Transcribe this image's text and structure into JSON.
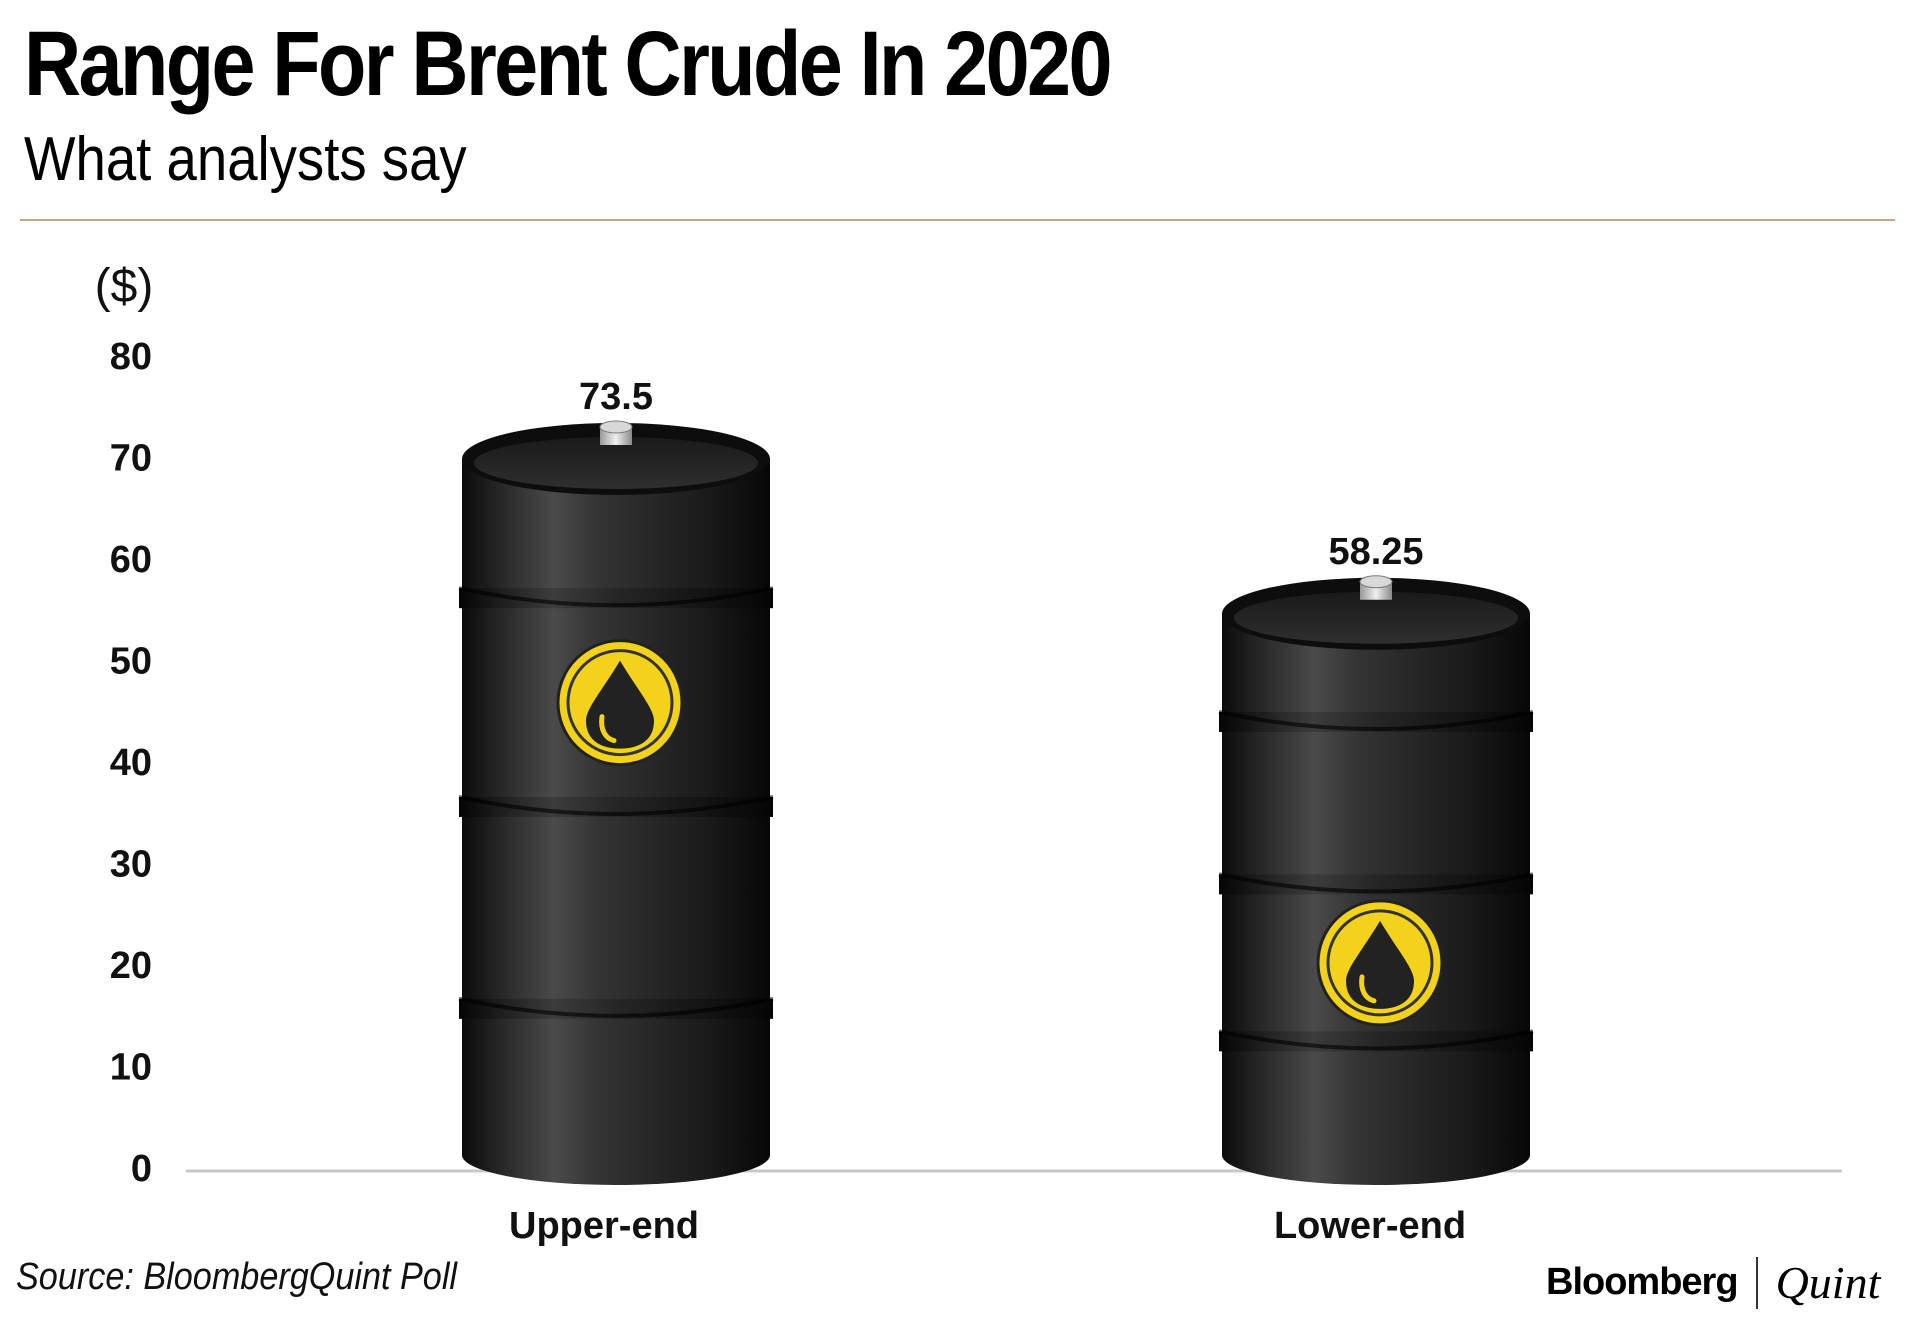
{
  "header": {
    "title": "Range For Brent Crude In 2020",
    "subtitle": "What analysts say"
  },
  "footer": {
    "source": "Source: BloombergQuint Poll",
    "brand_primary": "Bloomberg",
    "brand_secondary": "Quint"
  },
  "chart_data": {
    "type": "bar",
    "ylabel": "($)",
    "ylim": [
      0,
      80
    ],
    "yticks": [
      0,
      10,
      20,
      30,
      40,
      50,
      60,
      70,
      80
    ],
    "categories": [
      "Upper-end",
      "Lower-end"
    ],
    "values": [
      73.5,
      58.25
    ],
    "value_labels": [
      "73.5",
      "58.25"
    ],
    "bar_style": "oil barrel",
    "grid": false,
    "colors": {
      "barrel": "#1c1c1c",
      "emblem": "#f2d21b",
      "axis": "#c8c8c8"
    }
  }
}
